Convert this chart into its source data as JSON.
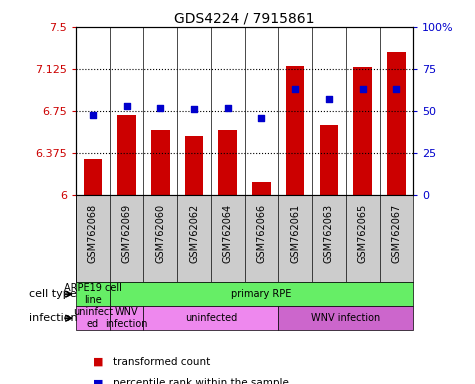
{
  "title": "GDS4224 / 7915861",
  "samples": [
    "GSM762068",
    "GSM762069",
    "GSM762060",
    "GSM762062",
    "GSM762064",
    "GSM762066",
    "GSM762061",
    "GSM762063",
    "GSM762065",
    "GSM762067"
  ],
  "transformed_counts": [
    6.32,
    6.72,
    6.58,
    6.53,
    6.58,
    6.12,
    7.15,
    6.63,
    7.14,
    7.28
  ],
  "percentile_ranks": [
    48,
    53,
    52,
    51,
    52,
    46,
    63,
    57,
    63,
    63
  ],
  "ylim": [
    6.0,
    7.5
  ],
  "y_ticks": [
    6.0,
    6.375,
    6.75,
    7.125,
    7.5
  ],
  "y_tick_labels": [
    "6",
    "6.375",
    "6.75",
    "7.125",
    "7.5"
  ],
  "right_ylim": [
    0,
    100
  ],
  "right_yticks": [
    0,
    25,
    50,
    75,
    100
  ],
  "right_yticklabels": [
    "0",
    "25",
    "50",
    "75",
    "100%"
  ],
  "bar_color": "#cc0000",
  "dot_color": "#0000cc",
  "bar_bottom": 6.0,
  "bar_width": 0.55,
  "tick_bg_color": "#cccccc",
  "cell_type_spans": [
    {
      "label": "ARPE19 cell\nline",
      "start": 0,
      "end": 1,
      "color": "#66ee66"
    },
    {
      "label": "primary RPE",
      "start": 1,
      "end": 10,
      "color": "#66ee66"
    }
  ],
  "infection_spans": [
    {
      "label": "uninfect\ned",
      "start": 0,
      "end": 1,
      "color": "#ee88ee"
    },
    {
      "label": "WNV\ninfection",
      "start": 1,
      "end": 2,
      "color": "#ee88ee"
    },
    {
      "label": "uninfected",
      "start": 2,
      "end": 6,
      "color": "#ee88ee"
    },
    {
      "label": "WNV infection",
      "start": 6,
      "end": 10,
      "color": "#cc66cc"
    }
  ],
  "background_color": "#ffffff"
}
